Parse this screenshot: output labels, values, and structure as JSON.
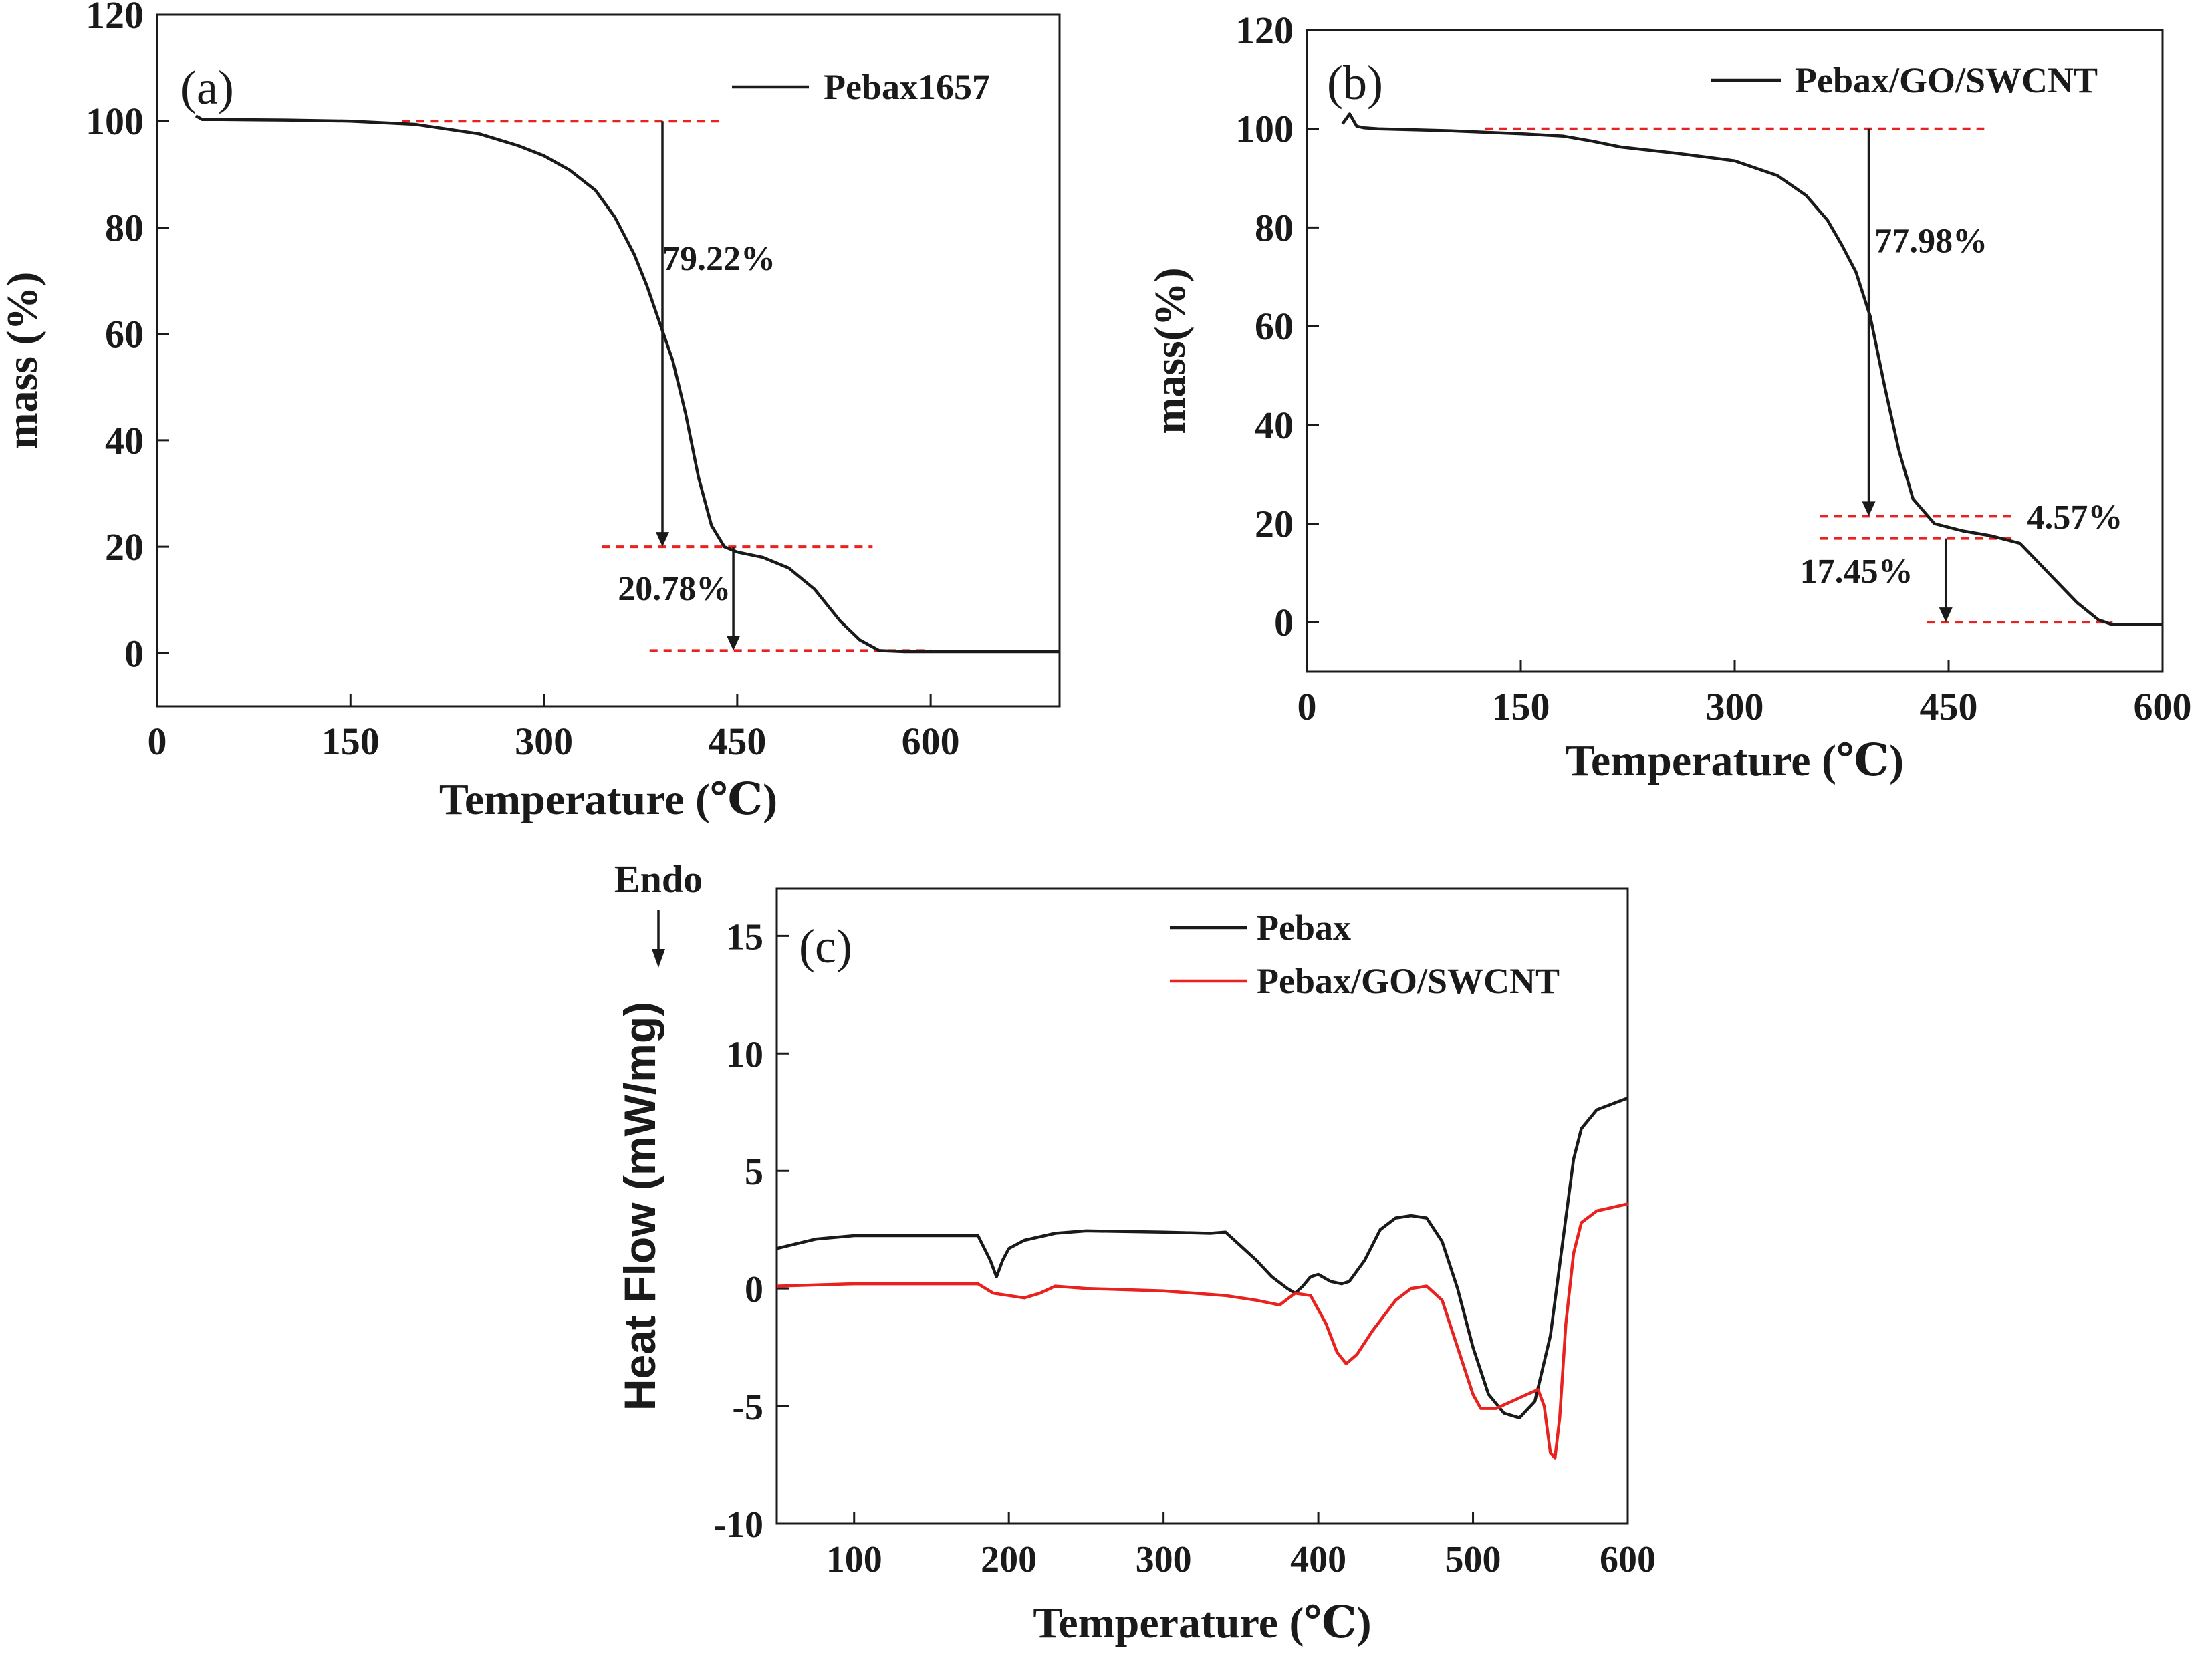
{
  "chart_data": [
    {
      "id": "a",
      "type": "line",
      "panel_label": "(a)",
      "xlabel": "Temperature (℃)",
      "ylabel": "mass (%)",
      "xlim": [
        0,
        700
      ],
      "ylim": [
        -10,
        120
      ],
      "xticks": [
        0,
        150,
        300,
        450,
        600
      ],
      "yticks": [
        0,
        20,
        40,
        60,
        80,
        100,
        120
      ],
      "legend": [
        "Pebax1657"
      ],
      "legend_position": "top-right",
      "series": [
        {
          "name": "Pebax1657",
          "color": "#1a1a1a",
          "x": [
            30,
            35,
            50,
            100,
            150,
            200,
            250,
            280,
            300,
            320,
            340,
            355,
            370,
            380,
            390,
            400,
            410,
            420,
            430,
            440,
            450,
            470,
            490,
            510,
            530,
            545,
            560,
            580,
            620,
            700
          ],
          "y": [
            101,
            100.3,
            100.3,
            100.2,
            100,
            99.4,
            97.6,
            95.4,
            93.5,
            90.8,
            87,
            82,
            75,
            69,
            62,
            55,
            45,
            33,
            24,
            20,
            19,
            18,
            16,
            12,
            6,
            2.5,
            0.5,
            0.3,
            0.3,
            0.3
          ]
        }
      ],
      "annotations": [
        {
          "text": "79.22%",
          "x": 392,
          "y": 72
        },
        {
          "text": "20.78%",
          "x": 445,
          "y": 10
        }
      ],
      "reference_lines": [
        {
          "y": 100,
          "x0": 190,
          "x1": 440
        },
        {
          "y": 20,
          "x0": 345,
          "x1": 555
        },
        {
          "y": 0.5,
          "x0": 382,
          "x1": 600
        }
      ],
      "arrows": [
        {
          "x": 392,
          "y_from": 100,
          "y_to": 20
        },
        {
          "x": 447,
          "y_from": 20,
          "y_to": 0.5
        }
      ]
    },
    {
      "id": "b",
      "type": "line",
      "panel_label": "(b)",
      "xlabel": "Temperature (℃)",
      "ylabel": "mass(%)",
      "xlim": [
        0,
        600
      ],
      "ylim": [
        -10,
        120
      ],
      "xticks": [
        0,
        150,
        300,
        450,
        600
      ],
      "yticks": [
        0,
        20,
        40,
        60,
        80,
        100,
        120
      ],
      "legend": [
        "Pebax/GO/SWCNT"
      ],
      "legend_position": "top-right",
      "series": [
        {
          "name": "Pebax/GO/SWCNT",
          "color": "#1a1a1a",
          "x": [
            25,
            30,
            35,
            40,
            50,
            100,
            150,
            180,
            200,
            220,
            260,
            300,
            330,
            350,
            365,
            375,
            385,
            395,
            405,
            415,
            425,
            440,
            460,
            480,
            500,
            520,
            540,
            555,
            565,
            580,
            600
          ],
          "y": [
            101,
            103,
            100.5,
            100.2,
            100,
            99.6,
            99,
            98.5,
            97.5,
            96.3,
            95,
            93.5,
            90.5,
            86.5,
            81.5,
            76.5,
            71,
            62,
            48,
            35,
            25,
            20,
            18.5,
            17.5,
            16,
            10,
            4,
            0.5,
            -0.5,
            -0.5,
            -0.5
          ]
        }
      ],
      "annotations": [
        {
          "text": "77.98%",
          "x": 398,
          "y": 75
        },
        {
          "text": "4.57%",
          "x": 505,
          "y": 19
        },
        {
          "text": "17.45%",
          "x": 425,
          "y": 8
        }
      ],
      "reference_lines": [
        {
          "y": 100,
          "x0": 125,
          "x1": 475
        },
        {
          "y": 21.5,
          "x0": 360,
          "x1": 498
        },
        {
          "y": 17,
          "x0": 360,
          "x1": 498
        },
        {
          "y": 0,
          "x0": 435,
          "x1": 565
        }
      ],
      "arrows": [
        {
          "x": 394,
          "y_from": 100,
          "y_to": 21.5
        },
        {
          "x": 448,
          "y_from": 17,
          "y_to": 0
        }
      ]
    },
    {
      "id": "c",
      "type": "line",
      "panel_label": "(c)",
      "xlabel": "Temperature (℃)",
      "ylabel": "Heat Flow (mW/mg)",
      "endo_label": "Endo",
      "xlim": [
        50,
        600
      ],
      "ylim": [
        -10,
        17
      ],
      "xticks": [
        100,
        200,
        300,
        400,
        500,
        600
      ],
      "yticks": [
        -10,
        -5,
        0,
        5,
        10,
        15
      ],
      "legend": [
        "Pebax",
        "Pebax/GO/SWCNT"
      ],
      "legend_position": "top-right",
      "series": [
        {
          "name": "Pebax",
          "color": "#1a1a1a",
          "x": [
            50,
            75,
            100,
            150,
            180,
            188,
            192,
            196,
            200,
            210,
            230,
            250,
            300,
            330,
            340,
            350,
            360,
            370,
            380,
            385,
            390,
            395,
            400,
            408,
            415,
            420,
            430,
            440,
            450,
            460,
            470,
            480,
            490,
            500,
            510,
            520,
            530,
            540,
            550,
            560,
            565,
            570,
            580,
            600
          ],
          "y": [
            1.7,
            2.1,
            2.25,
            2.25,
            2.25,
            1.2,
            0.5,
            1.2,
            1.7,
            2.05,
            2.35,
            2.45,
            2.4,
            2.35,
            2.4,
            1.8,
            1.2,
            0.5,
            0.0,
            -0.2,
            0.1,
            0.5,
            0.6,
            0.3,
            0.2,
            0.3,
            1.2,
            2.5,
            3.0,
            3.1,
            3.0,
            2.0,
            0.0,
            -2.5,
            -4.5,
            -5.3,
            -5.5,
            -4.8,
            -2.0,
            3.0,
            5.5,
            6.8,
            7.6,
            8.1
          ]
        },
        {
          "name": "Pebax/GO/SWCNT",
          "color": "#e8231f",
          "x": [
            50,
            100,
            150,
            180,
            190,
            200,
            210,
            220,
            230,
            250,
            300,
            340,
            360,
            375,
            385,
            395,
            405,
            412,
            418,
            425,
            435,
            450,
            460,
            470,
            480,
            490,
            500,
            505,
            515,
            525,
            535,
            542,
            546,
            550,
            553,
            556,
            560,
            565,
            570,
            580,
            600
          ],
          "y": [
            0.1,
            0.2,
            0.2,
            0.2,
            -0.2,
            -0.3,
            -0.4,
            -0.2,
            0.1,
            0.0,
            -0.1,
            -0.3,
            -0.5,
            -0.7,
            -0.2,
            -0.3,
            -1.5,
            -2.7,
            -3.2,
            -2.8,
            -1.8,
            -0.5,
            0.0,
            0.1,
            -0.5,
            -2.5,
            -4.5,
            -5.1,
            -5.1,
            -4.8,
            -4.5,
            -4.3,
            -5.0,
            -7.0,
            -7.2,
            -5.5,
            -1.5,
            1.5,
            2.8,
            3.3,
            3.6
          ]
        }
      ]
    }
  ]
}
